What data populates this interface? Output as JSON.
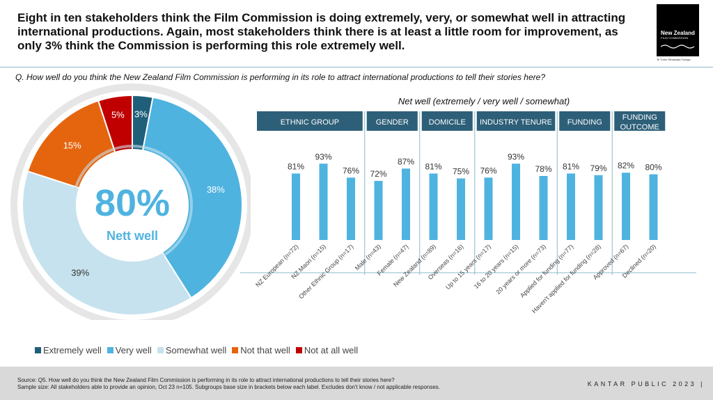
{
  "header": {
    "headline": "Eight in ten stakeholders think the Film Commission is doing extremely, very, or somewhat well in attracting international productions. Again, most stakeholders think there is at least a little room for improvement, as only 3% think the Commission is performing this role extremely well.",
    "logo_line1": "New Zealand",
    "logo_line2": "FILM COMMISSION",
    "logo_tagline": "Te Tumu Whakaata Taonga"
  },
  "question": "Q. How well do you think the New Zealand Film Commission is performing in its role to attract international productions to tell their stories here?",
  "footer": {
    "source": "Source: Q5. How well do you think the New Zealand Film Commission is performing in its role to attract international productions to tell their stories here?",
    "sample": "Sample size: All stakeholders able to provide an opinion, Oct 23 n=105. Subgroups base size in brackets below each label. Excludes don't know / not applicable responses.",
    "brand": "KANTAR PUBLIC 2023 |"
  },
  "colors": {
    "extremely_well": "#1f5f7a",
    "very_well": "#4fb3e0",
    "somewhat_well": "#c6e2ee",
    "not_that_well": "#e5650f",
    "not_at_all_well": "#c00000",
    "group_header": "#2d5f78"
  },
  "chart_data": [
    {
      "type": "pie",
      "style": "donut",
      "center_value": "80%",
      "center_label": "Nett well",
      "series": [
        {
          "name": "Extremely well",
          "value": 3,
          "label": "3%"
        },
        {
          "name": "Very well",
          "value": 38,
          "label": "38%"
        },
        {
          "name": "Somewhat well",
          "value": 39,
          "label": "39%"
        },
        {
          "name": "Not that well",
          "value": 15,
          "label": "15%"
        },
        {
          "name": "Not at all well",
          "value": 5,
          "label": "5%"
        }
      ],
      "legend": "bottom"
    },
    {
      "type": "bar",
      "title": "Net well (extremely / very well / somewhat)",
      "groups": [
        {
          "name": "ETHNIC GROUP",
          "count": 3
        },
        {
          "name": "GENDER",
          "count": 2
        },
        {
          "name": "DOMICILE",
          "count": 2
        },
        {
          "name": "INDUSTRY TENURE",
          "count": 3
        },
        {
          "name": "FUNDING",
          "count": 2
        },
        {
          "name": "FUNDING OUTCOME",
          "count": 2
        }
      ],
      "categories": [
        "NZ European (n=72)",
        "NZ Maori (n=15)",
        "Other Ethnic Group (n=17)",
        "Male (n=43)",
        "Female (n=47)",
        "New Zealand (n=89)",
        "Overseas (n=16)",
        "Up to 15 years (n=17)",
        "16 to 20 years (n=15)",
        "20 years or more (n=73)",
        "Applied for funding (n=77)",
        "Haven't applied for funding (n=28)",
        "Approved (n=67)",
        "Declined (n=20)"
      ],
      "values": [
        81,
        93,
        76,
        72,
        87,
        81,
        75,
        76,
        93,
        78,
        81,
        79,
        82,
        80
      ],
      "labels": [
        "81%",
        "93%",
        "76%",
        "72%",
        "87%",
        "81%",
        "75%",
        "76%",
        "93%",
        "78%",
        "81%",
        "79%",
        "82%",
        "80%"
      ],
      "ylim": [
        0,
        100
      ]
    }
  ]
}
